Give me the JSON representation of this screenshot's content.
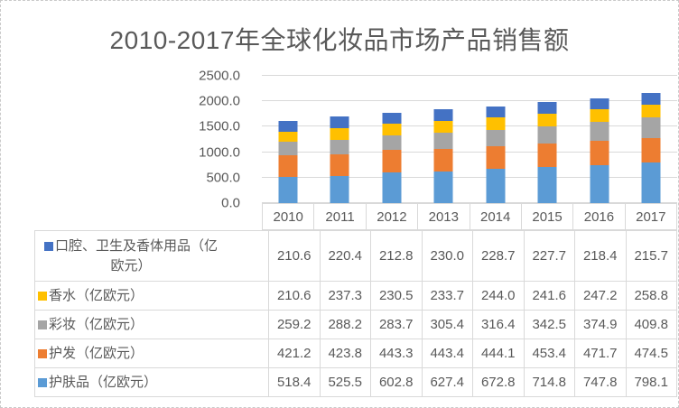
{
  "page": {
    "title": "2010-2017年全球化妆品市场产品销售额"
  },
  "chart_data": {
    "type": "bar",
    "subtype": "stacked-column-with-data-table",
    "title": "2010-2017年全球化妆品市场产品销售额",
    "categories": [
      "2010",
      "2011",
      "2012",
      "2013",
      "2014",
      "2015",
      "2016",
      "2017"
    ],
    "series": [
      {
        "name": "护肤品（亿欧元）",
        "color": "#5B9BD5",
        "values": [
          518.4,
          525.5,
          602.8,
          627.4,
          672.8,
          714.8,
          747.8,
          798.1
        ]
      },
      {
        "name": "护发（亿欧元）",
        "color": "#ED7D31",
        "values": [
          421.2,
          423.8,
          443.3,
          443.4,
          444.1,
          453.4,
          471.7,
          474.5
        ]
      },
      {
        "name": "彩妆（亿欧元）",
        "color": "#A5A5A5",
        "values": [
          259.2,
          288.2,
          283.7,
          305.4,
          316.4,
          342.5,
          374.9,
          409.8
        ]
      },
      {
        "name": "香水（亿欧元）",
        "color": "#FFC000",
        "values": [
          210.6,
          237.3,
          230.5,
          233.7,
          244.0,
          241.6,
          247.2,
          258.8
        ]
      },
      {
        "name": "口腔、卫生及香体用品（亿欧元）",
        "color": "#4472C4",
        "values": [
          210.6,
          220.4,
          212.8,
          230.0,
          228.7,
          227.7,
          218.4,
          215.7
        ]
      }
    ],
    "table_row_order_top_to_bottom": [
      4,
      3,
      2,
      1,
      0
    ],
    "y_axis": {
      "min": 0,
      "max": 2500,
      "step": 500,
      "tick_labels": [
        "0.0",
        "500.0",
        "1000.0",
        "1500.0",
        "2000.0",
        "2500.0"
      ]
    },
    "grid": true,
    "legend_position": "data-table-left",
    "value_decimals": 1,
    "colors": {
      "text": "#595959",
      "gridline": "#d9d9d9",
      "table_border": "#d9d9d9"
    }
  }
}
